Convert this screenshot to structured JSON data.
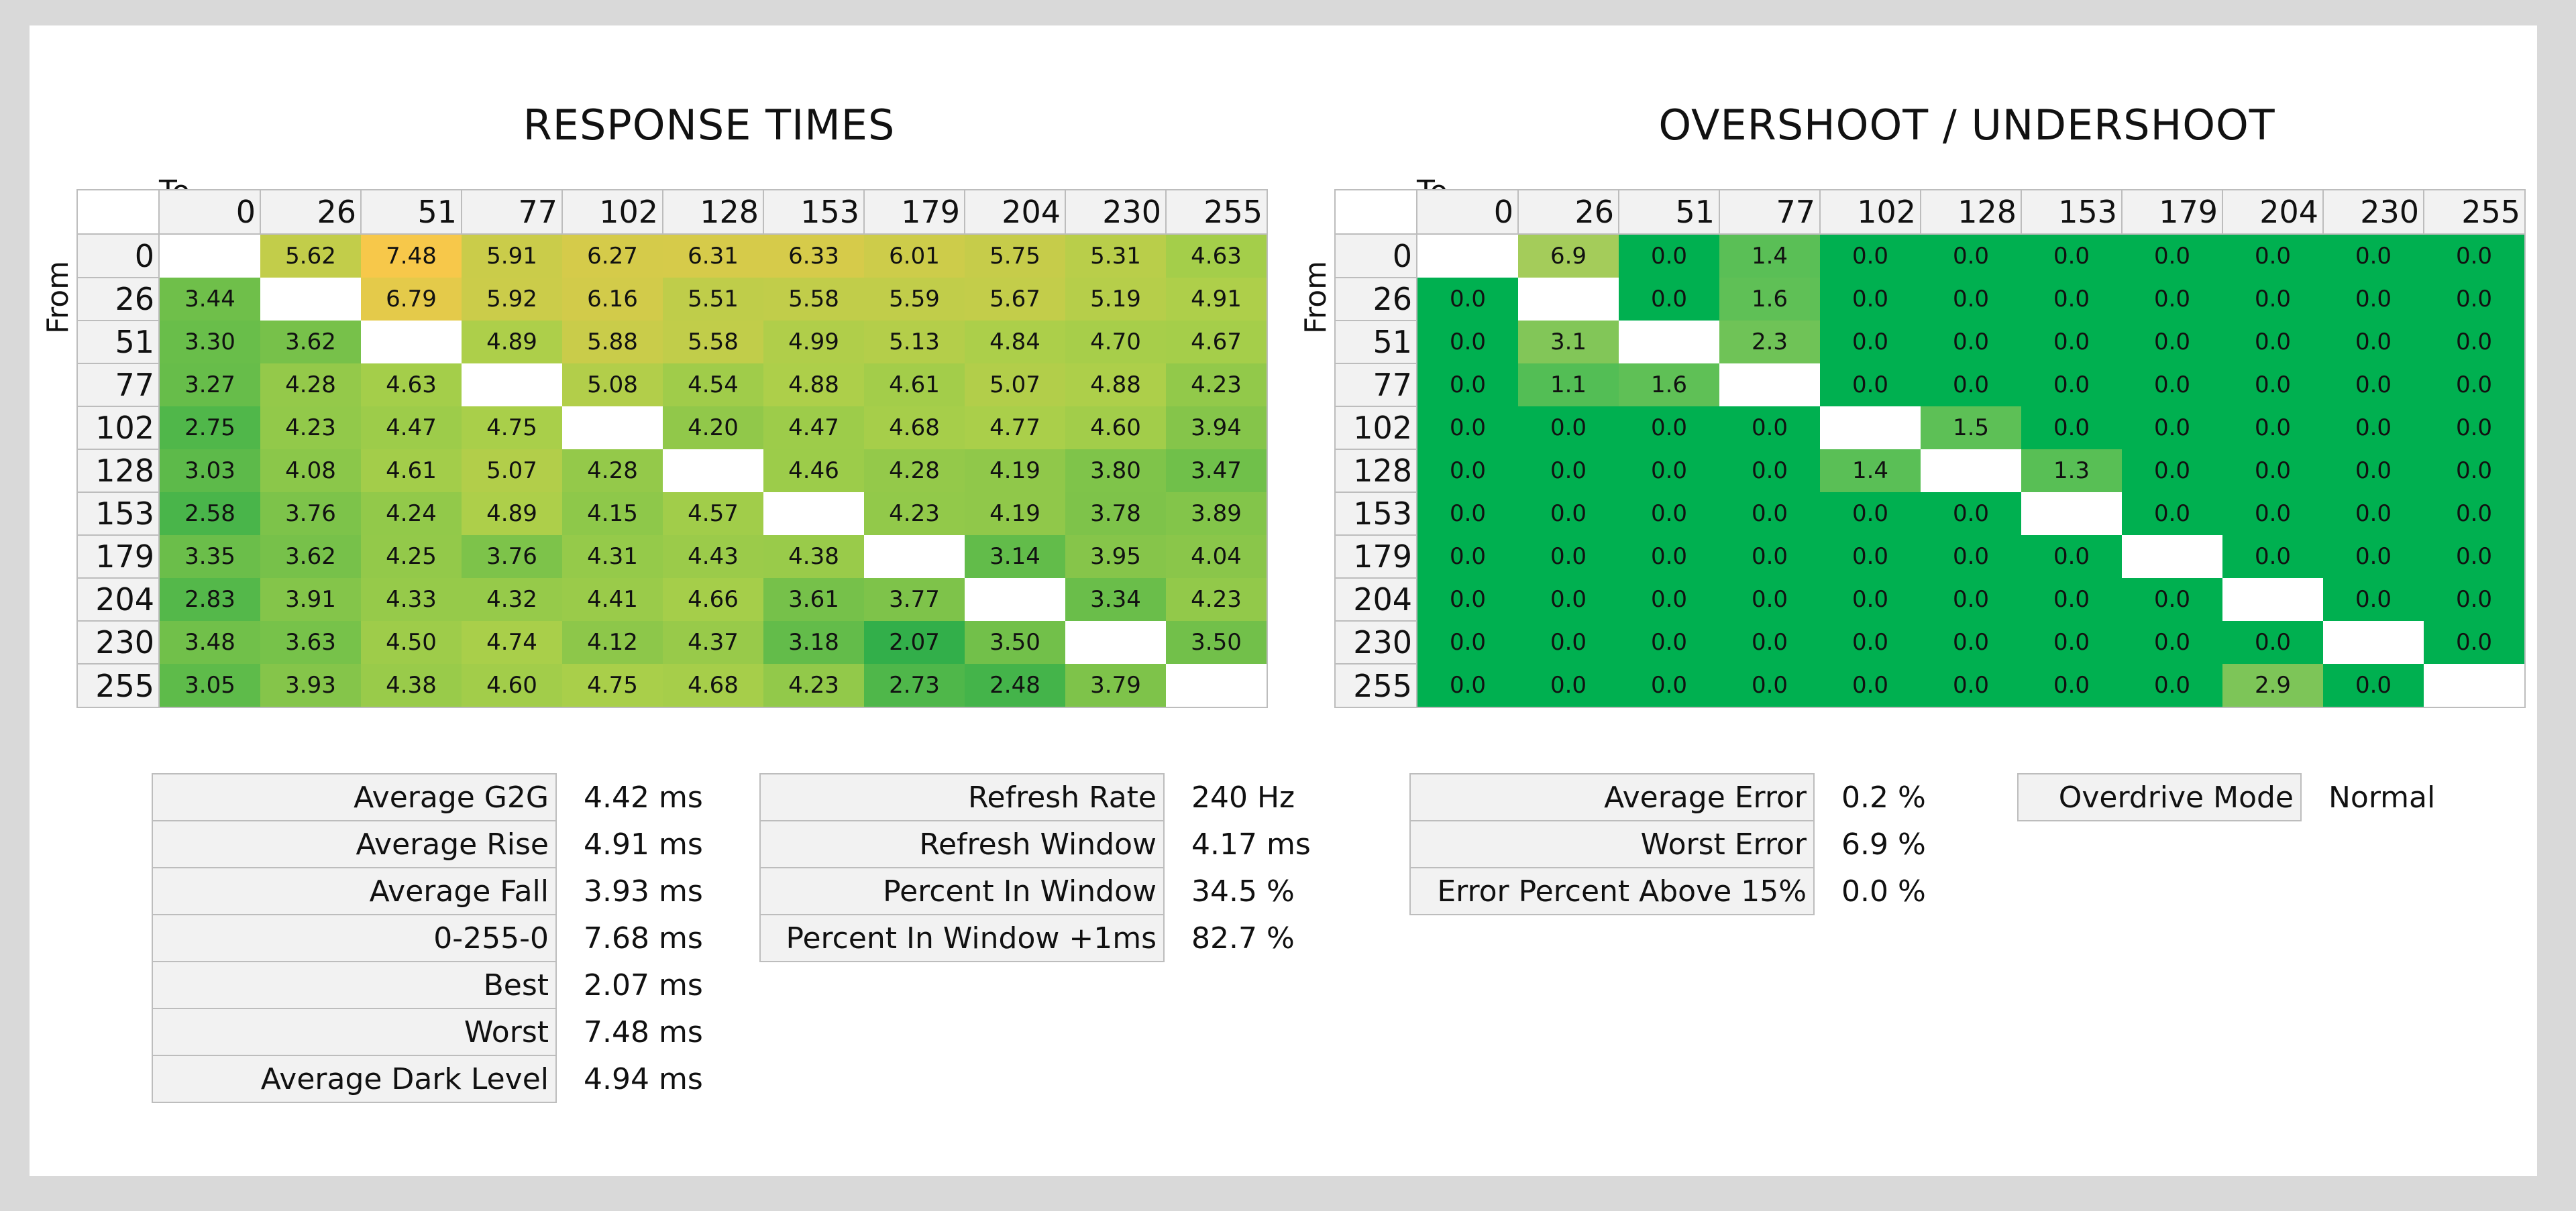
{
  "response_times": {
    "title": "RESPONSE TIMES",
    "to_label": "To",
    "from_label": "From",
    "stats_left": [
      {
        "label": "Average G2G",
        "value": "4.42 ms"
      },
      {
        "label": "Average Rise",
        "value": "4.91 ms"
      },
      {
        "label": "Average Fall",
        "value": "3.93 ms"
      },
      {
        "label": "0-255-0",
        "value": "7.68 ms"
      },
      {
        "label": "Best",
        "value": "2.07 ms"
      },
      {
        "label": "Worst",
        "value": "7.48 ms"
      },
      {
        "label": "Average Dark Level",
        "value": "4.94 ms"
      }
    ],
    "stats_right": [
      {
        "label": "Refresh Rate",
        "value": "240 Hz"
      },
      {
        "label": "Refresh Window",
        "value": "4.17 ms"
      },
      {
        "label": "Percent In Window",
        "value": "34.5 %"
      },
      {
        "label": "Percent In Window +1ms",
        "value": "82.7 %"
      }
    ]
  },
  "overshoot": {
    "title": "OVERSHOOT / UNDERSHOOT",
    "to_label": "To",
    "from_label": "From",
    "stats_left": [
      {
        "label": "Average Error",
        "value": "0.2 %"
      },
      {
        "label": "Worst Error",
        "value": "6.9 %"
      },
      {
        "label": "Error Percent Above 15%",
        "value": "0.0 %"
      }
    ],
    "stats_right": [
      {
        "label": "Overdrive Mode",
        "value": "Normal"
      }
    ]
  },
  "chart_data": [
    {
      "type": "heatmap",
      "title": "RESPONSE TIMES",
      "xlabel": "To",
      "ylabel": "From",
      "unit": "ms",
      "levels": [
        "0",
        "26",
        "51",
        "77",
        "102",
        "128",
        "153",
        "179",
        "204",
        "230",
        "255"
      ],
      "values": [
        [
          null,
          "5.62",
          "7.48",
          "5.91",
          "6.27",
          "6.31",
          "6.33",
          "6.01",
          "5.75",
          "5.31",
          "4.63"
        ],
        [
          "3.44",
          null,
          "6.79",
          "5.92",
          "6.16",
          "5.51",
          "5.58",
          "5.59",
          "5.67",
          "5.19",
          "4.91"
        ],
        [
          "3.30",
          "3.62",
          null,
          "4.89",
          "5.88",
          "5.58",
          "4.99",
          "5.13",
          "4.84",
          "4.70",
          "4.67"
        ],
        [
          "3.27",
          "4.28",
          "4.63",
          null,
          "5.08",
          "4.54",
          "4.88",
          "4.61",
          "5.07",
          "4.88",
          "4.23"
        ],
        [
          "2.75",
          "4.23",
          "4.47",
          "4.75",
          null,
          "4.20",
          "4.47",
          "4.68",
          "4.77",
          "4.60",
          "3.94"
        ],
        [
          "3.03",
          "4.08",
          "4.61",
          "5.07",
          "4.28",
          null,
          "4.46",
          "4.28",
          "4.19",
          "3.80",
          "3.47"
        ],
        [
          "2.58",
          "3.76",
          "4.24",
          "4.89",
          "4.15",
          "4.57",
          null,
          "4.23",
          "4.19",
          "3.78",
          "3.89"
        ],
        [
          "3.35",
          "3.62",
          "4.25",
          "3.76",
          "4.31",
          "4.43",
          "4.38",
          null,
          "3.14",
          "3.95",
          "4.04"
        ],
        [
          "2.83",
          "3.91",
          "4.33",
          "4.32",
          "4.41",
          "4.66",
          "3.61",
          "3.77",
          null,
          "3.34",
          "4.23"
        ],
        [
          "3.48",
          "3.63",
          "4.50",
          "4.74",
          "4.12",
          "4.37",
          "3.18",
          "2.07",
          "3.50",
          null,
          "3.50"
        ],
        [
          "3.05",
          "3.93",
          "4.38",
          "4.60",
          "4.75",
          "4.68",
          "4.23",
          "2.73",
          "2.48",
          "3.79",
          null
        ]
      ],
      "color_scale": {
        "low": "#2fae4a",
        "mid": "#a9cf4a",
        "high": "#f8c84a",
        "min": 2.0,
        "max": 7.5
      }
    },
    {
      "type": "heatmap",
      "title": "OVERSHOOT / UNDERSHOOT",
      "xlabel": "To",
      "ylabel": "From",
      "unit": "%",
      "levels": [
        "0",
        "26",
        "51",
        "77",
        "102",
        "128",
        "153",
        "179",
        "204",
        "230",
        "255"
      ],
      "values": [
        [
          null,
          "6.9",
          "0.0",
          "1.4",
          "0.0",
          "0.0",
          "0.0",
          "0.0",
          "0.0",
          "0.0",
          "0.0"
        ],
        [
          "0.0",
          null,
          "0.0",
          "1.6",
          "0.0",
          "0.0",
          "0.0",
          "0.0",
          "0.0",
          "0.0",
          "0.0"
        ],
        [
          "0.0",
          "3.1",
          null,
          "2.3",
          "0.0",
          "0.0",
          "0.0",
          "0.0",
          "0.0",
          "0.0",
          "0.0"
        ],
        [
          "0.0",
          "1.1",
          "1.6",
          null,
          "0.0",
          "0.0",
          "0.0",
          "0.0",
          "0.0",
          "0.0",
          "0.0"
        ],
        [
          "0.0",
          "0.0",
          "0.0",
          "0.0",
          null,
          "1.5",
          "0.0",
          "0.0",
          "0.0",
          "0.0",
          "0.0"
        ],
        [
          "0.0",
          "0.0",
          "0.0",
          "0.0",
          "1.4",
          null,
          "1.3",
          "0.0",
          "0.0",
          "0.0",
          "0.0"
        ],
        [
          "0.0",
          "0.0",
          "0.0",
          "0.0",
          "0.0",
          "0.0",
          null,
          "0.0",
          "0.0",
          "0.0",
          "0.0"
        ],
        [
          "0.0",
          "0.0",
          "0.0",
          "0.0",
          "0.0",
          "0.0",
          "0.0",
          null,
          "0.0",
          "0.0",
          "0.0"
        ],
        [
          "0.0",
          "0.0",
          "0.0",
          "0.0",
          "0.0",
          "0.0",
          "0.0",
          "0.0",
          null,
          "0.0",
          "0.0"
        ],
        [
          "0.0",
          "0.0",
          "0.0",
          "0.0",
          "0.0",
          "0.0",
          "0.0",
          "0.0",
          "0.0",
          null,
          "0.0"
        ],
        [
          "0.0",
          "0.0",
          "0.0",
          "0.0",
          "0.0",
          "0.0",
          "0.0",
          "0.0",
          "2.9",
          "0.0",
          null
        ]
      ],
      "color_scale": {
        "low": "#00b050",
        "high": "#a4cc5a",
        "min": 0,
        "max": 7
      }
    }
  ]
}
